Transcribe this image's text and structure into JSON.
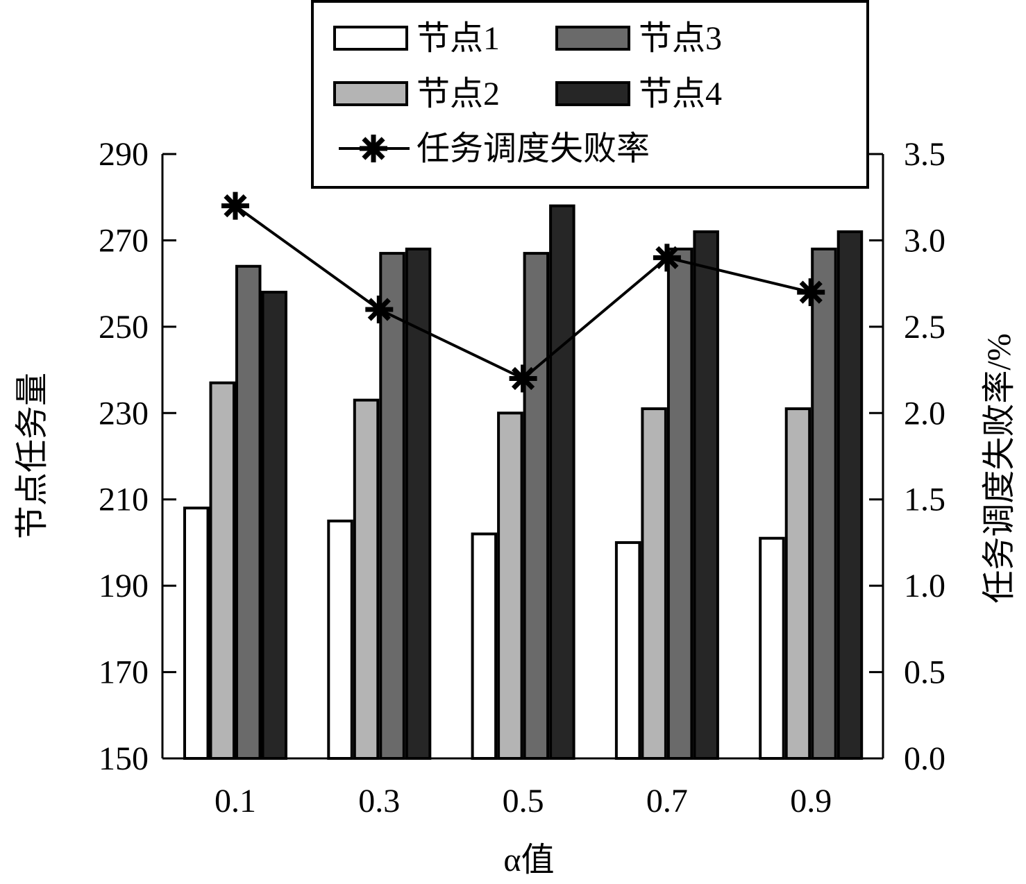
{
  "chart_data": {
    "type": "bar",
    "categories": [
      "0.1",
      "0.3",
      "0.5",
      "0.7",
      "0.9"
    ],
    "xlabel": "α值",
    "ylabel": "节点任务量",
    "ylabel_right": "任务调度失败率/%",
    "ylim": [
      150,
      290
    ],
    "yticks": [
      "150",
      "170",
      "190",
      "210",
      "230",
      "250",
      "270",
      "290"
    ],
    "ylim_right": [
      0,
      3.5
    ],
    "yticks_right": [
      "0.0",
      "0.5",
      "1.0",
      "1.5",
      "2.0",
      "2.5",
      "3.0",
      "3.5"
    ],
    "series": [
      {
        "name": "节点1",
        "color": "#ffffff",
        "values": [
          208,
          205,
          202,
          200,
          201
        ]
      },
      {
        "name": "节点2",
        "color": "#b4b4b4",
        "values": [
          237,
          233,
          230,
          231,
          231
        ]
      },
      {
        "name": "节点3",
        "color": "#6a6a6a",
        "values": [
          264,
          267,
          267,
          268,
          268
        ]
      },
      {
        "name": "节点4",
        "color": "#262626",
        "values": [
          258,
          268,
          278,
          272,
          272
        ]
      }
    ],
    "line_series": {
      "name": "任务调度失败率",
      "axis": "right",
      "marker": "asterisk",
      "values": [
        3.2,
        2.6,
        2.2,
        2.9,
        2.7
      ]
    },
    "legend_position": "top-center",
    "grid": false
  }
}
